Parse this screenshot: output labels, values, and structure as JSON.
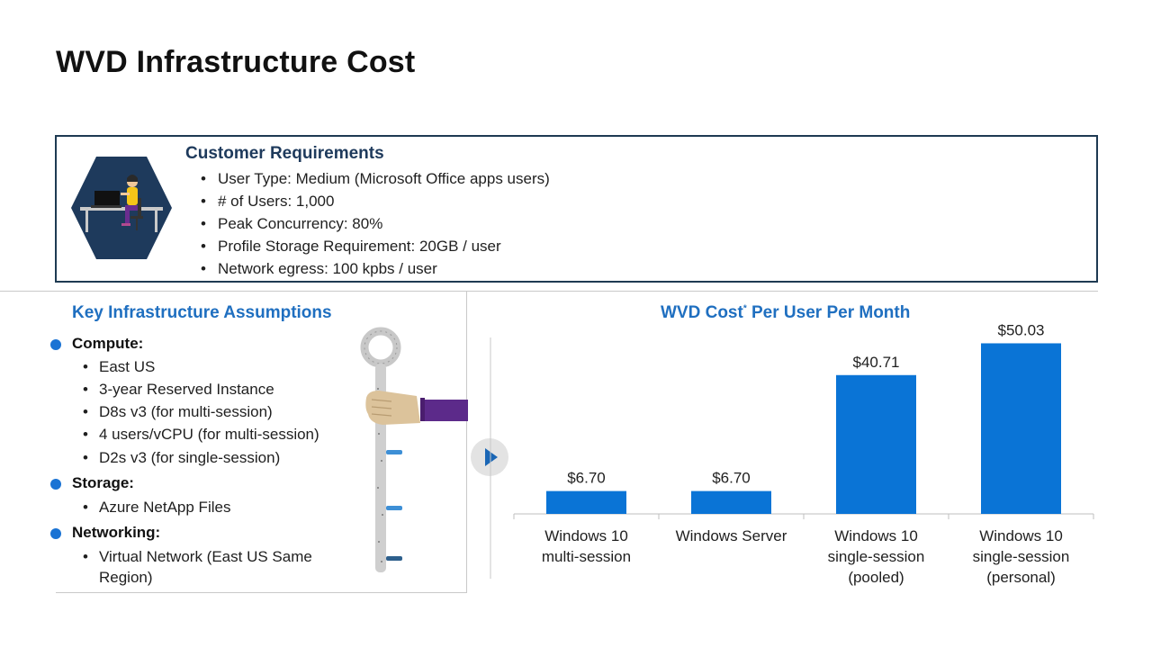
{
  "title": "WVD Infrastructure Cost",
  "requirements": {
    "title": "Customer Requirements",
    "items": [
      "User Type: Medium (Microsoft Office apps users)",
      "# of Users: 1,000",
      "Peak Concurrency: 80%",
      "Profile Storage Requirement: 20GB / user",
      "Network egress: 100 kpbs / user"
    ]
  },
  "assumptions": {
    "title": "Key Infrastructure Assumptions",
    "compute": {
      "label": "Compute:",
      "items": [
        "East US",
        "3-year Reserved Instance",
        "D8s v3 (for multi-session)",
        "4 users/vCPU (for multi-session)",
        "D2s v3 (for single-session)"
      ]
    },
    "storage": {
      "label": "Storage:",
      "items": [
        "Azure NetApp Files"
      ]
    },
    "networking": {
      "label": "Networking:",
      "items": [
        "Virtual Network (East US Same Region)"
      ]
    }
  },
  "chart_title": {
    "main": "WVD Cost",
    "sup": "*",
    "rest": " Per User Per Month"
  },
  "colors": {
    "bar": "#0a74d6",
    "accent": "#1f6fc0",
    "dark_navy": "#1e3a5c"
  },
  "icons": {
    "user": "person-at-desk-icon",
    "key": "key-icon",
    "hand": "hand-icon",
    "play": "play-icon"
  },
  "chart_data": {
    "type": "bar",
    "title": "WVD Cost* Per User Per Month",
    "categories": [
      [
        "Windows 10",
        "multi-session"
      ],
      [
        "Windows Server"
      ],
      [
        "Windows 10",
        "single-session",
        "(pooled)"
      ],
      [
        "Windows 10",
        "single-session",
        "(personal)"
      ]
    ],
    "values": [
      6.7,
      6.7,
      40.71,
      50.03
    ],
    "data_labels": [
      "$6.70",
      "$6.70",
      "$40.71",
      "$50.03"
    ],
    "xlabel": "",
    "ylabel": "",
    "ylim": [
      0,
      52
    ],
    "grid": false,
    "legend": "none"
  }
}
